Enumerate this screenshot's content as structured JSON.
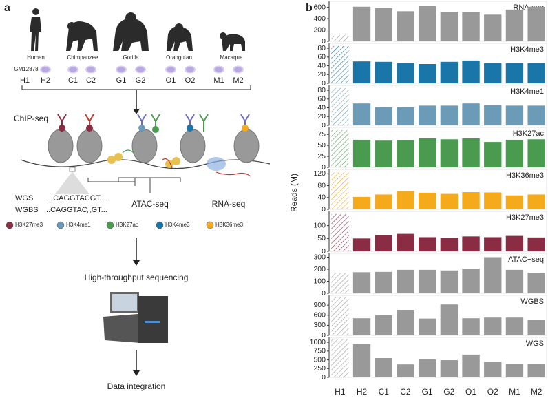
{
  "panel_labels": {
    "a": "a",
    "b": "b"
  },
  "diagram": {
    "species": [
      "Human",
      "Chimpanzee",
      "Gorilla",
      "Orangutan",
      "Macaque"
    ],
    "cell_line": "GM12878",
    "samples": [
      "H1",
      "H2",
      "C1",
      "C2",
      "G1",
      "G2",
      "O1",
      "O2",
      "M1",
      "M2"
    ],
    "chip_label": "ChIP-seq",
    "wgs_label": "WGS",
    "wgbs_label": "WGBS",
    "wgs_seq": "...CAGGTACGT...",
    "wgbs_seq": [
      "...CAGGTAC",
      "m",
      "GT..."
    ],
    "atac_label": "ATAC-seq",
    "rna_label": "RNA-seq",
    "legend": [
      {
        "name": "H3K27me3",
        "color": "#8a2c44"
      },
      {
        "name": "H3K4me1",
        "color": "#6b9bb6"
      },
      {
        "name": "H3K27ac",
        "color": "#4a9a50"
      },
      {
        "name": "H3K4me3",
        "color": "#1a75a8"
      },
      {
        "name": "H3K36me3",
        "color": "#f5aa1c"
      }
    ],
    "step_sequencing": "High-throughput sequencing",
    "step_integration": "Data integration"
  },
  "y_label": "Reads (M)",
  "chart_data": [
    {
      "type": "bar",
      "title": "RNA-seq",
      "color": "#999999",
      "hatch_first": true,
      "values": [
        110,
        610,
        585,
        530,
        625,
        520,
        520,
        470,
        560,
        610
      ],
      "ylim": [
        0,
        680
      ],
      "yticks": [
        0,
        200,
        400,
        600
      ]
    },
    {
      "type": "bar",
      "title": "H3K4me3",
      "color": "#1a75a8",
      "hatch_first": true,
      "values": [
        85,
        50,
        49,
        47,
        44,
        49,
        52,
        46,
        46,
        46
      ],
      "ylim": [
        0,
        88
      ],
      "yticks": [
        0,
        20,
        40,
        60,
        80
      ]
    },
    {
      "type": "bar",
      "title": "H3K4me1",
      "color": "#6b9bb6",
      "hatch_first": true,
      "values": [
        85,
        50,
        41,
        41,
        45,
        45,
        50,
        46,
        45,
        45
      ],
      "ylim": [
        0,
        88
      ],
      "yticks": [
        0,
        20,
        40,
        60,
        80
      ]
    },
    {
      "type": "bar",
      "title": "H3K27ac",
      "color": "#4a9a50",
      "hatch_first": true,
      "values": [
        85,
        63,
        61,
        62,
        66,
        64,
        66,
        58,
        63,
        64
      ],
      "ylim": [
        0,
        88
      ],
      "yticks": [
        0,
        25,
        50,
        75
      ]
    },
    {
      "type": "bar",
      "title": "H3K36me3",
      "color": "#f5aa1c",
      "hatch_first": true,
      "values": [
        125,
        42,
        50,
        62,
        56,
        52,
        58,
        57,
        47,
        50
      ],
      "ylim": [
        0,
        130
      ],
      "yticks": [
        0,
        40,
        80,
        120
      ]
    },
    {
      "type": "bar",
      "title": "H3K27me3",
      "color": "#8a2c44",
      "hatch_first": true,
      "values": [
        145,
        50,
        63,
        68,
        55,
        53,
        58,
        55,
        60,
        54
      ],
      "ylim": [
        0,
        150
      ],
      "yticks": [
        0,
        50,
        100
      ]
    },
    {
      "type": "bar",
      "title": "ATAC−seq",
      "color": "#999999",
      "hatch_first": true,
      "values": [
        170,
        175,
        178,
        195,
        195,
        190,
        205,
        300,
        195,
        170
      ],
      "ylim": [
        0,
        320
      ],
      "yticks": [
        0,
        100,
        200,
        300
      ]
    },
    {
      "type": "bar",
      "title": "WGBS",
      "color": "#999999",
      "hatch_first": true,
      "values": [
        1150,
        510,
        600,
        760,
        500,
        920,
        510,
        530,
        530,
        470
      ],
      "ylim": [
        0,
        1150
      ],
      "yticks": [
        0,
        300,
        600,
        900
      ]
    },
    {
      "type": "bar",
      "title": "WGS",
      "color": "#999999",
      "hatch_first": true,
      "categories": [
        "H1",
        "H2",
        "C1",
        "C2",
        "G1",
        "G2",
        "O1",
        "O2",
        "M1",
        "M2"
      ],
      "values": [
        1100,
        950,
        550,
        370,
        510,
        490,
        650,
        440,
        390,
        390
      ],
      "ylim": [
        0,
        1100
      ],
      "yticks": [
        0,
        250,
        500,
        750,
        1000
      ]
    }
  ]
}
